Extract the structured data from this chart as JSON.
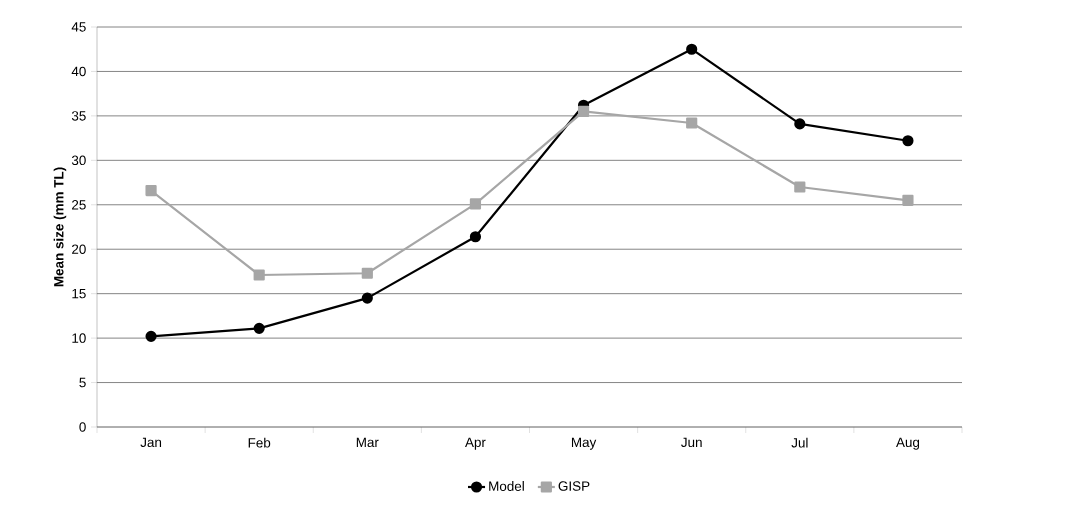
{
  "chart_data": {
    "type": "line",
    "ylabel": "Mean size (mm TL)",
    "categories": [
      "Jan",
      "Feb",
      "Mar",
      "Apr",
      "May",
      "Jun",
      "Jul",
      "Aug"
    ],
    "series": [
      {
        "name": "Model",
        "color": "#000000",
        "marker": "circle",
        "values": [
          10.2,
          11.1,
          14.5,
          21.4,
          36.2,
          42.5,
          34.1,
          32.2
        ]
      },
      {
        "name": "GISP",
        "color": "#a6a6a6",
        "marker": "square",
        "values": [
          26.6,
          17.1,
          17.3,
          25.1,
          35.5,
          34.2,
          27.0,
          25.5
        ]
      }
    ],
    "ylim": [
      0,
      45
    ],
    "yticks": [
      0,
      5,
      10,
      15,
      20,
      25,
      30,
      35,
      40,
      45
    ],
    "grid": "y",
    "legend": "bottom",
    "line_style": "solid"
  }
}
